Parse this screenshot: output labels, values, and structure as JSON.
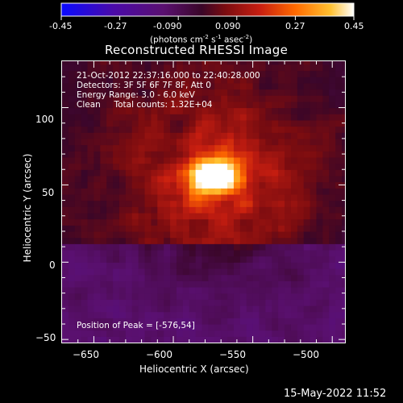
{
  "colorbar": {
    "ticks": [
      "-0.45",
      "-0.27",
      "-0.090",
      "0.090",
      "0.27",
      "0.45"
    ],
    "unit_label": "(photons cm",
    "unit_sup1": "-2",
    "unit_mid": " s",
    "unit_sup2": "-1",
    "unit_mid2": " asec",
    "unit_sup3": "-2",
    "unit_end": ")"
  },
  "title": "Reconstructed RHESSI Image",
  "overlay": {
    "line1": "21-Oct-2012 22:37:16.000 to 22:40:28.000",
    "line2": "Detectors: 3F 5F 6F 7F 8F, Att 0",
    "line3": "Energy Range: 3.0 - 6.0 keV",
    "line4": "Clean     Total counts: 1.32E+04",
    "peak": "Position of Peak = [-576,54]"
  },
  "footer": "15-May-2022 11:52",
  "colors": {
    "colormap_stops": [
      "#0a0aff",
      "#4b0aa8",
      "#5a1070",
      "#3a0628",
      "#7a0c10",
      "#c81e10",
      "#ff6a00",
      "#ffc030",
      "#ffffff"
    ],
    "axes": "#ffffff",
    "background": "#000000"
  },
  "chart_data": {
    "type": "heatmap",
    "title": "Reconstructed RHESSI Image",
    "xlabel": "Heliocentric X (arcsec)",
    "ylabel": "Heliocentric Y (arcsec)",
    "xlim": [
      -670,
      -492
    ],
    "ylim": [
      -52,
      130
    ],
    "x_ticks": [
      -650,
      -600,
      -550,
      -500
    ],
    "y_ticks": [
      -50,
      0,
      50,
      100
    ],
    "x_tick_labels": [
      "−650",
      "−600",
      "−550",
      "−500"
    ],
    "y_tick_labels": [
      "−50",
      "0",
      "50",
      "100"
    ],
    "colorbar_range": [
      -0.45,
      0.45
    ],
    "peak": {
      "x": -576,
      "y": 54
    }
  }
}
